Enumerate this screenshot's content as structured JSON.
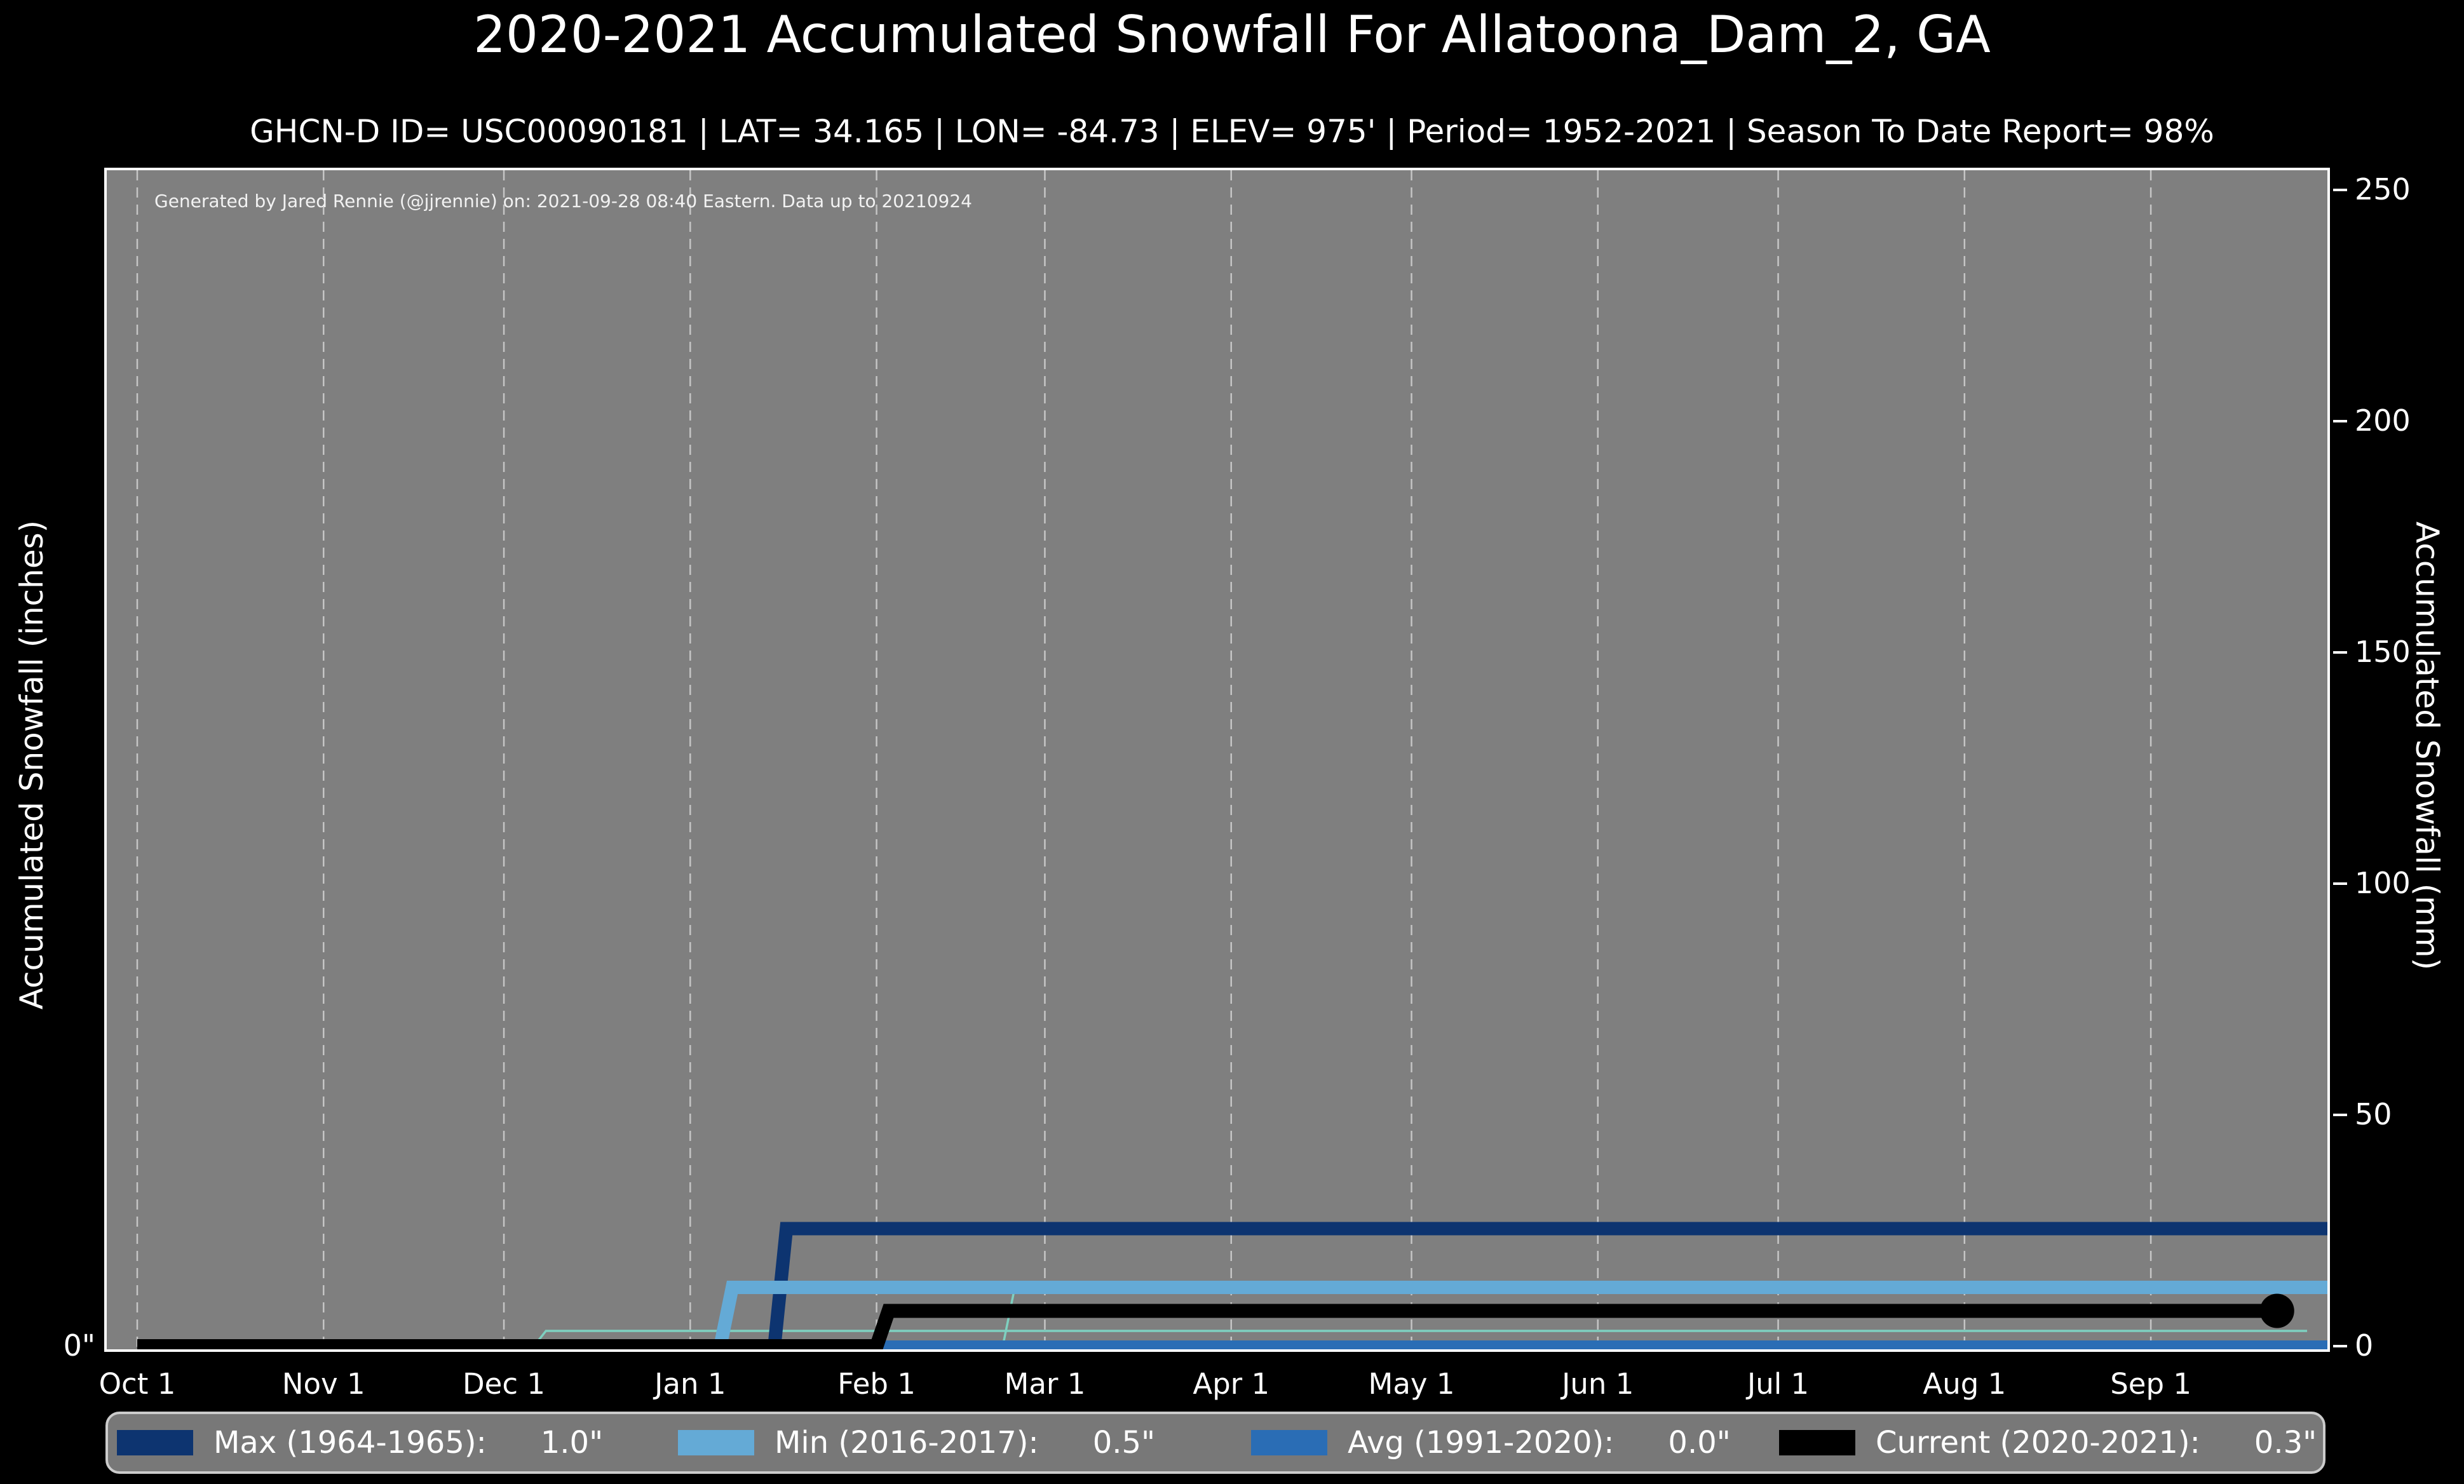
{
  "title": "2020-2021 Accumulated Snowfall For Allatoona_Dam_2, GA",
  "subtitle": "GHCN-D ID= USC00090181 | LAT= 34.165 | LON= -84.73 | ELEV= 975' | Period= 1952-2021 | Season To Date Report= 98%",
  "annotation": "Generated by Jared Rennie (@jjrennie) on: 2021-09-28 08:40 Eastern. Data up to 20210924",
  "colors": {
    "figure_background": "#000000",
    "plot_background": "#7f7f7f",
    "gridline": "#ffffff",
    "max_line": "#0d3470",
    "min_line": "#64aad6",
    "avg_line": "#2a6db5",
    "current_line": "#000000",
    "background_season_line": "#7ed0c0",
    "text": "#ffffff"
  },
  "axes": {
    "left_label": "Accumulated Snowfall (inches)",
    "right_label": "Accumulated Snowfall (mm)",
    "left_ticks": [
      {
        "mm": 0,
        "label": "0\""
      }
    ],
    "right_ticks": [
      {
        "mm": 0,
        "label": "0"
      },
      {
        "mm": 50,
        "label": "50"
      },
      {
        "mm": 100,
        "label": "100"
      },
      {
        "mm": 150,
        "label": "150"
      },
      {
        "mm": 200,
        "label": "200"
      },
      {
        "mm": 250,
        "label": "250"
      }
    ],
    "x_ticks": [
      {
        "day": 0,
        "label": "Oct 1"
      },
      {
        "day": 31,
        "label": "Nov 1"
      },
      {
        "day": 61,
        "label": "Dec 1"
      },
      {
        "day": 92,
        "label": "Jan 1"
      },
      {
        "day": 123,
        "label": "Feb 1"
      },
      {
        "day": 151,
        "label": "Mar 1"
      },
      {
        "day": 182,
        "label": "Apr 1"
      },
      {
        "day": 212,
        "label": "May 1"
      },
      {
        "day": 243,
        "label": "Jun 1"
      },
      {
        "day": 273,
        "label": "Jul 1"
      },
      {
        "day": 304,
        "label": "Aug 1"
      },
      {
        "day": 335,
        "label": "Sep 1"
      }
    ]
  },
  "legend": {
    "items": [
      {
        "label": "Max (1964-1965):",
        "value": "1.0\"",
        "color": "#0d3470"
      },
      {
        "label": "Min (2016-2017):",
        "value": "0.5\"",
        "color": "#64aad6"
      },
      {
        "label": "Avg (1991-2020):",
        "value": "0.0\"",
        "color": "#2a6db5"
      },
      {
        "label": "Current (2020-2021):",
        "value": "0.3\"",
        "color": "#000000"
      }
    ]
  },
  "chart_data": {
    "type": "line",
    "title": "2020-2021 Accumulated Snowfall For Allatoona_Dam_2, GA",
    "x_unit": "days_since_Oct_1",
    "x_range": [
      0,
      365
    ],
    "y_unit_left": "inches",
    "y_unit_right": "mm",
    "ylim_left_inches": [
      0,
      10.16
    ],
    "ylim_right_mm": [
      0,
      258
    ],
    "grid": "vertical dashed monthly gridlines",
    "legend_position": "bottom",
    "series": [
      {
        "name": "background-season-a",
        "legend": null,
        "color": "#7ed0c0",
        "width": 3.5,
        "points_day_inches": [
          [
            0,
            0
          ],
          [
            66,
            0
          ],
          [
            68,
            0.13
          ],
          [
            361,
            0.13
          ]
        ]
      },
      {
        "name": "background-season-b",
        "legend": null,
        "color": "#7ed0c0",
        "width": 3.5,
        "points_day_inches": [
          [
            0,
            0
          ],
          [
            144,
            0
          ],
          [
            146,
            0.5
          ],
          [
            366,
            0.5
          ]
        ]
      },
      {
        "name": "Max (1964-1965)",
        "legend": "Max (1964-1965):   1.0\"",
        "color": "#0d3470",
        "width": 21,
        "points_day_inches": [
          [
            0,
            0
          ],
          [
            106,
            0
          ],
          [
            108,
            1.0
          ],
          [
            366,
            1.0
          ]
        ]
      },
      {
        "name": "Min (2016-2017)",
        "legend": "Min (2016-2017):   0.5\"",
        "color": "#64aad6",
        "width": 21,
        "points_day_inches": [
          [
            0,
            0
          ],
          [
            97,
            0
          ],
          [
            99,
            0.5
          ],
          [
            366,
            0.5
          ]
        ]
      },
      {
        "name": "Avg (1991-2020)",
        "legend": "Avg (1991-2020):   0.0\"",
        "color": "#2a6db5",
        "width": 18,
        "points_day_inches": [
          [
            0,
            0
          ],
          [
            366,
            0
          ]
        ]
      },
      {
        "name": "Current (2020-2021)",
        "legend": "Current (2020-2021):   0.3\"",
        "color": "#000000",
        "width": 22,
        "points_day_inches": [
          [
            0,
            0
          ],
          [
            123,
            0
          ],
          [
            125,
            0.3
          ],
          [
            356,
            0.3
          ]
        ],
        "end_marker": {
          "day": 356,
          "value_inches": 0.3,
          "radius": 27
        }
      }
    ]
  }
}
